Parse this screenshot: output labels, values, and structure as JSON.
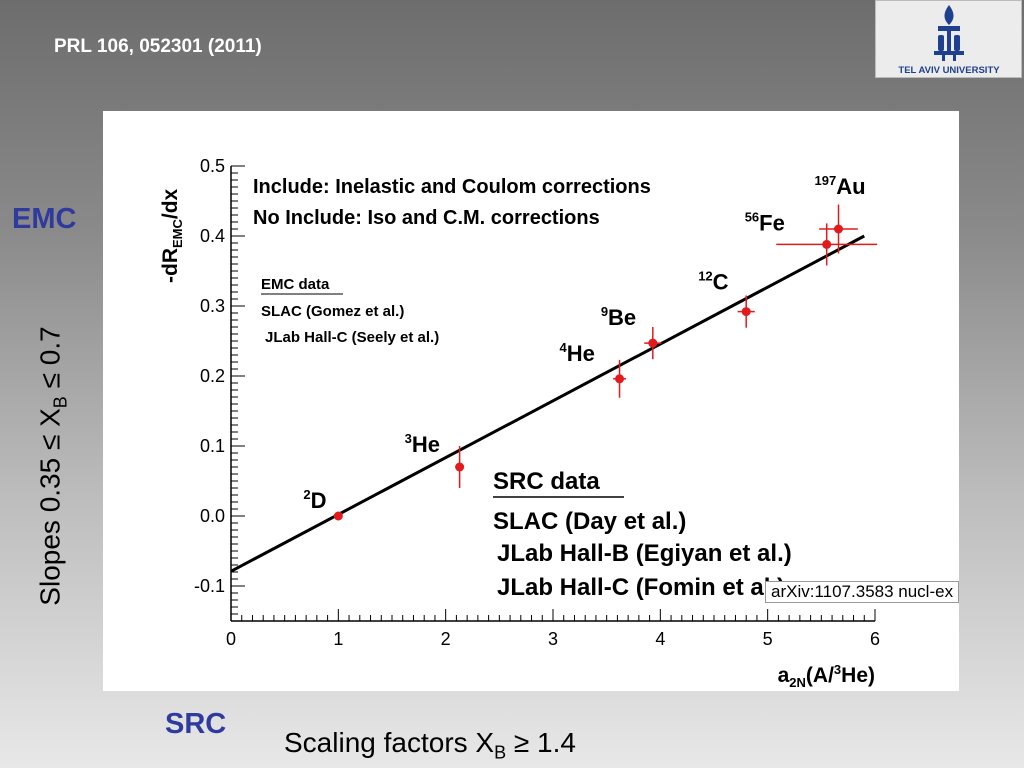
{
  "slide": {
    "reference": "PRL  106, 052301 (2011)",
    "emc_label": "EMC",
    "src_label": "SRC",
    "slopes_label": "Slopes  0.35 ≤ X",
    "slopes_sub": "B",
    "slopes_tail": " ≤ 0.7",
    "scaling_label": "Scaling factors X",
    "scaling_sub": "B",
    "scaling_tail": " ≥ 1.4",
    "arxiv": "arXiv:1107.3583 nucl-ex",
    "logo_text": "TEL AVIV UNIVERSITY"
  },
  "colors": {
    "slide_accent": "#2f3a9e",
    "data_points": "#e31a1c",
    "fit_line": "#000000",
    "logo_blue": "#1f3f8f"
  },
  "chart_data": {
    "type": "scatter",
    "xlabel": "a2N(A/3He)",
    "ylabel": "-dREMC/dx",
    "xlim": [
      0,
      6
    ],
    "ylim": [
      -0.15,
      0.5
    ],
    "xticks": [
      "0",
      "1",
      "2",
      "3",
      "4",
      "5",
      "6"
    ],
    "yticks": [
      "-0.1",
      "0.0",
      "0.1",
      "0.2",
      "0.3",
      "0.4",
      "0.5"
    ],
    "annotations": [
      "Include: Inelastic and Coulom corrections",
      "No Include: Iso and C.M. corrections"
    ],
    "legend_emc": {
      "title": "EMC data",
      "items": [
        "SLAC (Gomez et al.)",
        "JLab Hall-C (Seely et al.)"
      ]
    },
    "legend_src": {
      "title": "SRC data",
      "items": [
        "SLAC (Day et al.)",
        "JLab Hall-B (Egiyan et al.)",
        "JLab Hall-C (Fomin et al.)"
      ]
    },
    "points": [
      {
        "label": "D",
        "mass": "2",
        "x": 1.0,
        "y": 0.0,
        "xerr": 0.0,
        "yerr": 0.0
      },
      {
        "label": "He",
        "mass": "3",
        "x": 2.13,
        "y": 0.07,
        "xerr": 0.0,
        "yerr": 0.03
      },
      {
        "label": "He",
        "mass": "4",
        "x": 3.62,
        "y": 0.196,
        "xerr": 0.06,
        "yerr": 0.027
      },
      {
        "label": "Be",
        "mass": "9",
        "x": 3.93,
        "y": 0.247,
        "xerr": 0.08,
        "yerr": 0.023
      },
      {
        "label": "C",
        "mass": "12",
        "x": 4.8,
        "y": 0.292,
        "xerr": 0.08,
        "yerr": 0.023
      },
      {
        "label": "Fe",
        "mass": "56",
        "x": 5.55,
        "y": 0.388,
        "xerr": 0.47,
        "yerr": 0.03
      },
      {
        "label": "Au",
        "mass": "197",
        "x": 5.66,
        "y": 0.41,
        "xerr": 0.18,
        "yerr": 0.035
      }
    ],
    "fit_line": {
      "x": [
        0,
        5.9
      ],
      "y": [
        -0.079,
        0.4
      ]
    },
    "grid": false,
    "legend_position": "top-left and bottom-right inside plot"
  }
}
